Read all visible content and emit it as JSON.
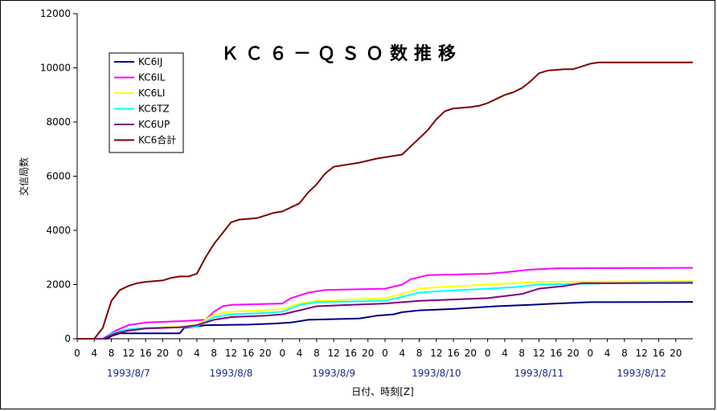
{
  "chart_data": {
    "type": "line",
    "title": "ＫＣ６－ＱＳＯ数推移",
    "xlabel": "日付、時刻[Z]",
    "ylabel": "交信局数",
    "ylim": [
      0,
      12000
    ],
    "yticks": [
      0,
      2000,
      4000,
      6000,
      8000,
      10000,
      12000
    ],
    "xlim_hours": [
      0,
      144
    ],
    "xtick_labels": [
      "0",
      "4",
      "8",
      "12",
      "16",
      "20",
      "0",
      "4",
      "8",
      "12",
      "16",
      "20",
      "0",
      "4",
      "8",
      "12",
      "16",
      "20",
      "0",
      "4",
      "8",
      "12",
      "16",
      "20",
      "0",
      "4",
      "8",
      "12",
      "16",
      "20",
      "0",
      "4",
      "8",
      "12",
      "16",
      "20"
    ],
    "x_groups": [
      "1993/8/7",
      "1993/8/8",
      "1993/8/9",
      "1993/8/10",
      "1993/8/11",
      "1993/8/12"
    ],
    "legend_position": "top-left",
    "grid": false,
    "series": [
      {
        "name": "KC6IJ",
        "color": "#000080",
        "points": [
          [
            0,
            0
          ],
          [
            7,
            0
          ],
          [
            8,
            100
          ],
          [
            10,
            200
          ],
          [
            24,
            200
          ],
          [
            25,
            400
          ],
          [
            28,
            450
          ],
          [
            30,
            500
          ],
          [
            40,
            520
          ],
          [
            46,
            560
          ],
          [
            50,
            600
          ],
          [
            54,
            700
          ],
          [
            66,
            750
          ],
          [
            70,
            850
          ],
          [
            74,
            900
          ],
          [
            76,
            980
          ],
          [
            80,
            1050
          ],
          [
            88,
            1100
          ],
          [
            98,
            1200
          ],
          [
            106,
            1250
          ],
          [
            112,
            1300
          ],
          [
            120,
            1350
          ],
          [
            144,
            1360
          ]
        ]
      },
      {
        "name": "KC6IL",
        "color": "#ff00ff",
        "points": [
          [
            0,
            0
          ],
          [
            6,
            0
          ],
          [
            9,
            300
          ],
          [
            12,
            500
          ],
          [
            16,
            600
          ],
          [
            24,
            650
          ],
          [
            30,
            700
          ],
          [
            32,
            1000
          ],
          [
            34,
            1200
          ],
          [
            36,
            1250
          ],
          [
            48,
            1300
          ],
          [
            50,
            1500
          ],
          [
            54,
            1700
          ],
          [
            58,
            1800
          ],
          [
            72,
            1850
          ],
          [
            76,
            2000
          ],
          [
            78,
            2200
          ],
          [
            82,
            2350
          ],
          [
            96,
            2400
          ],
          [
            100,
            2450
          ],
          [
            106,
            2550
          ],
          [
            112,
            2600
          ],
          [
            144,
            2620
          ]
        ]
      },
      {
        "name": "KC6LI",
        "color": "#ffff00",
        "points": [
          [
            0,
            0
          ],
          [
            6,
            0
          ],
          [
            9,
            250
          ],
          [
            12,
            350
          ],
          [
            16,
            400
          ],
          [
            24,
            450
          ],
          [
            28,
            500
          ],
          [
            32,
            900
          ],
          [
            36,
            1000
          ],
          [
            44,
            1050
          ],
          [
            48,
            1100
          ],
          [
            52,
            1300
          ],
          [
            56,
            1400
          ],
          [
            72,
            1500
          ],
          [
            76,
            1650
          ],
          [
            80,
            1850
          ],
          [
            84,
            1900
          ],
          [
            96,
            2000
          ],
          [
            102,
            2050
          ],
          [
            108,
            2100
          ],
          [
            144,
            2130
          ]
        ]
      },
      {
        "name": "KC6TZ",
        "color": "#00ffff",
        "points": [
          [
            0,
            0
          ],
          [
            6,
            0
          ],
          [
            9,
            250
          ],
          [
            12,
            350
          ],
          [
            16,
            400
          ],
          [
            24,
            420
          ],
          [
            28,
            450
          ],
          [
            32,
            800
          ],
          [
            36,
            900
          ],
          [
            44,
            950
          ],
          [
            48,
            1000
          ],
          [
            52,
            1250
          ],
          [
            56,
            1350
          ],
          [
            72,
            1400
          ],
          [
            76,
            1550
          ],
          [
            80,
            1700
          ],
          [
            84,
            1750
          ],
          [
            96,
            1850
          ],
          [
            102,
            1900
          ],
          [
            108,
            2000
          ],
          [
            144,
            2100
          ]
        ]
      },
      {
        "name": "KC6UP",
        "color": "#800080",
        "points": [
          [
            0,
            0
          ],
          [
            6,
            0
          ],
          [
            9,
            200
          ],
          [
            12,
            300
          ],
          [
            16,
            380
          ],
          [
            24,
            420
          ],
          [
            28,
            500
          ],
          [
            32,
            700
          ],
          [
            36,
            800
          ],
          [
            44,
            850
          ],
          [
            48,
            900
          ],
          [
            52,
            1050
          ],
          [
            56,
            1200
          ],
          [
            64,
            1250
          ],
          [
            72,
            1300
          ],
          [
            76,
            1350
          ],
          [
            80,
            1400
          ],
          [
            88,
            1450
          ],
          [
            96,
            1500
          ],
          [
            104,
            1650
          ],
          [
            108,
            1850
          ],
          [
            114,
            1950
          ],
          [
            118,
            2050
          ],
          [
            144,
            2060
          ]
        ]
      },
      {
        "name": "KC6合計",
        "color": "#800000",
        "points": [
          [
            0,
            0
          ],
          [
            4,
            0
          ],
          [
            5,
            200
          ],
          [
            6,
            400
          ],
          [
            7,
            900
          ],
          [
            8,
            1400
          ],
          [
            10,
            1800
          ],
          [
            12,
            1950
          ],
          [
            14,
            2050
          ],
          [
            16,
            2100
          ],
          [
            20,
            2150
          ],
          [
            22,
            2250
          ],
          [
            24,
            2300
          ],
          [
            26,
            2300
          ],
          [
            28,
            2400
          ],
          [
            30,
            3000
          ],
          [
            32,
            3500
          ],
          [
            34,
            3900
          ],
          [
            36,
            4300
          ],
          [
            38,
            4400
          ],
          [
            42,
            4450
          ],
          [
            44,
            4550
          ],
          [
            46,
            4650
          ],
          [
            48,
            4700
          ],
          [
            50,
            4850
          ],
          [
            52,
            5000
          ],
          [
            54,
            5400
          ],
          [
            56,
            5700
          ],
          [
            58,
            6100
          ],
          [
            60,
            6350
          ],
          [
            62,
            6400
          ],
          [
            66,
            6500
          ],
          [
            70,
            6650
          ],
          [
            72,
            6700
          ],
          [
            76,
            6800
          ],
          [
            78,
            7100
          ],
          [
            80,
            7400
          ],
          [
            82,
            7700
          ],
          [
            84,
            8100
          ],
          [
            86,
            8400
          ],
          [
            88,
            8500
          ],
          [
            92,
            8550
          ],
          [
            94,
            8600
          ],
          [
            96,
            8700
          ],
          [
            98,
            8850
          ],
          [
            100,
            9000
          ],
          [
            102,
            9100
          ],
          [
            104,
            9250
          ],
          [
            106,
            9500
          ],
          [
            108,
            9800
          ],
          [
            110,
            9900
          ],
          [
            114,
            9950
          ],
          [
            116,
            9950
          ],
          [
            118,
            10050
          ],
          [
            120,
            10150
          ],
          [
            122,
            10200
          ],
          [
            124,
            10200
          ],
          [
            144,
            10200
          ]
        ]
      }
    ]
  }
}
